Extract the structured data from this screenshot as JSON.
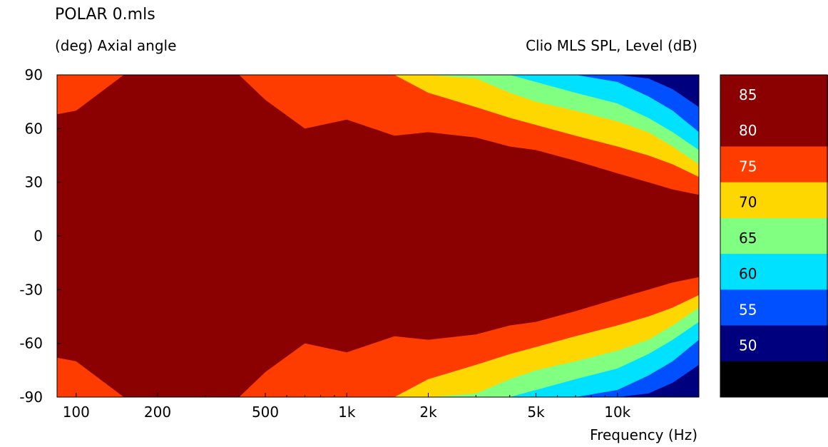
{
  "chart_data": {
    "type": "heatmap",
    "title": "POLAR 0.mls",
    "ylabel": "(deg)  Axial angle",
    "colorbar_label": "Clio MLS SPL, Level  (dB)",
    "xlabel": "Frequency  (Hz)",
    "x_scale": "log",
    "xlim": [
      85,
      20000
    ],
    "ylim": [
      -90,
      90
    ],
    "x_ticks": [
      {
        "value": 100,
        "label": "100"
      },
      {
        "value": 200,
        "label": "200"
      },
      {
        "value": 500,
        "label": "500"
      },
      {
        "value": 1000,
        "label": "1k"
      },
      {
        "value": 2000,
        "label": "2k"
      },
      {
        "value": 5000,
        "label": "5k"
      },
      {
        "value": 10000,
        "label": "10k"
      }
    ],
    "y_ticks": [
      {
        "value": 90,
        "label": "90"
      },
      {
        "value": 60,
        "label": "60"
      },
      {
        "value": 30,
        "label": "30"
      },
      {
        "value": 0,
        "label": "0"
      },
      {
        "value": -30,
        "label": "-30"
      },
      {
        "value": -60,
        "label": "-60"
      },
      {
        "value": -90,
        "label": "-90"
      }
    ],
    "levels": [
      {
        "min": 85,
        "max": 90,
        "color": "#8b0000",
        "label": "85"
      },
      {
        "min": 80,
        "max": 85,
        "color": "#8b0000",
        "label": "80"
      },
      {
        "min": 75,
        "max": 80,
        "color": "#ff3c00",
        "label": "75"
      },
      {
        "min": 70,
        "max": 75,
        "color": "#ffd700",
        "label": "70"
      },
      {
        "min": 65,
        "max": 70,
        "color": "#80ff80",
        "label": "65"
      },
      {
        "min": 60,
        "max": 65,
        "color": "#00e1ff",
        "label": "60"
      },
      {
        "min": 55,
        "max": 60,
        "color": "#0050ff",
        "label": "55"
      },
      {
        "min": 50,
        "max": 55,
        "color": "#00007f",
        "label": "50"
      },
      {
        "min": 45,
        "max": 50,
        "color": "#000000",
        "label": ""
      }
    ],
    "contour_boundaries_deg": {
      "frequencies": [
        85,
        100,
        150,
        200,
        300,
        400,
        500,
        700,
        1000,
        1500,
        2000,
        3000,
        4000,
        5000,
        7000,
        10000,
        13000,
        16000,
        20000
      ],
      "below_80": [
        68,
        70,
        90,
        90,
        90,
        90,
        76,
        60,
        65,
        56,
        58,
        55,
        50,
        48,
        42,
        35,
        30,
        26,
        23
      ],
      "below_75": [
        90,
        90,
        90,
        90,
        90,
        90,
        90,
        90,
        90,
        90,
        80,
        72,
        66,
        62,
        56,
        50,
        45,
        40,
        33
      ],
      "below_70": [
        90,
        90,
        90,
        90,
        90,
        90,
        90,
        90,
        90,
        90,
        90,
        88,
        80,
        75,
        70,
        64,
        58,
        50,
        40
      ],
      "below_65": [
        90,
        90,
        90,
        90,
        90,
        90,
        90,
        90,
        90,
        90,
        90,
        90,
        90,
        86,
        80,
        74,
        66,
        58,
        48
      ],
      "below_60": [
        90,
        90,
        90,
        90,
        90,
        90,
        90,
        90,
        90,
        90,
        90,
        90,
        90,
        90,
        90,
        86,
        78,
        70,
        58
      ],
      "below_55": [
        90,
        90,
        90,
        90,
        90,
        90,
        90,
        90,
        90,
        90,
        90,
        90,
        90,
        90,
        90,
        90,
        88,
        82,
        72
      ]
    }
  }
}
